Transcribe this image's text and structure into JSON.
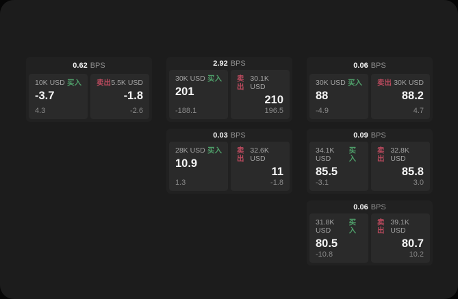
{
  "colors": {
    "backdrop": "#060606",
    "window_bg": "#1c1c1c",
    "card_bg": "#212121",
    "panel_bg": "#2a2a2a",
    "buy_green": "#4f9f6a",
    "sell_red": "#bc4a5e",
    "text_white": "#f5f5f5",
    "text_gray": "#8f8f8f"
  },
  "cards": [
    {
      "bps_value": "0.62",
      "bps_unit": "BPS",
      "buy": {
        "size": "10K USD",
        "label": "买入",
        "price": "-3.7",
        "delta": "4.3"
      },
      "sell": {
        "size": "5.5K USD",
        "label": "卖出",
        "price": "-1.8",
        "delta": "-2.6"
      }
    },
    {
      "bps_value": "2.92",
      "bps_unit": "BPS",
      "buy": {
        "size": "30K USD",
        "label": "买入",
        "price": "201",
        "delta": "-188.1"
      },
      "sell": {
        "size": "30.1K USD",
        "label": "卖出",
        "price": "210",
        "delta": "196.5"
      }
    },
    {
      "bps_value": "0.06",
      "bps_unit": "BPS",
      "buy": {
        "size": "30K USD",
        "label": "买入",
        "price": "88",
        "delta": "-4.9"
      },
      "sell": {
        "size": "30K USD",
        "label": "卖出",
        "price": "88.2",
        "delta": "4.7"
      }
    },
    {
      "bps_value": "0.03",
      "bps_unit": "BPS",
      "buy": {
        "size": "28K USD",
        "label": "买入",
        "price": "10.9",
        "delta": "1.3"
      },
      "sell": {
        "size": "32.6K USD",
        "label": "卖出",
        "price": "11",
        "delta": "-1.8"
      }
    },
    {
      "bps_value": "0.09",
      "bps_unit": "BPS",
      "buy": {
        "size": "34.1K USD",
        "label": "买入",
        "price": "85.5",
        "delta": "-3.1"
      },
      "sell": {
        "size": "32.8K USD",
        "label": "卖出",
        "price": "85.8",
        "delta": "3.0"
      }
    },
    {
      "bps_value": "0.06",
      "bps_unit": "BPS",
      "buy": {
        "size": "31.8K USD",
        "label": "买入",
        "price": "80.5",
        "delta": "-10.8"
      },
      "sell": {
        "size": "39.1K USD",
        "label": "卖出",
        "price": "80.7",
        "delta": "10.2"
      }
    }
  ]
}
